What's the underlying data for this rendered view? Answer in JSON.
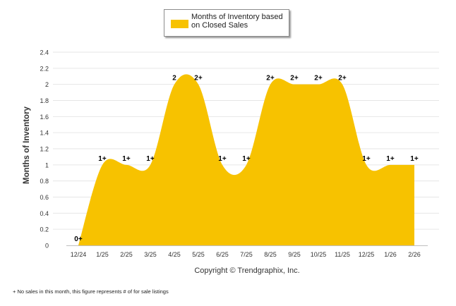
{
  "legend": {
    "label": "Months of Inventory based on Closed Sales"
  },
  "footnote": "+ No sales in this month, this figure represents # of for sale listings",
  "copyright": "Copyright © Trendgraphix, Inc.",
  "colors": {
    "fill": "#f7c200",
    "grid": "#e6e6e6",
    "axis": "#bfbfbf",
    "text": "#333333"
  },
  "chart_data": {
    "type": "area",
    "ylabel": "Months of Inventory",
    "xlabel": "",
    "ylim": [
      0,
      2.4
    ],
    "yticks": [
      "0",
      "0.2",
      "0.4",
      "0.6",
      "0.8",
      "1",
      "1.2",
      "1.4",
      "1.6",
      "1.8",
      "2",
      "2.2",
      "2.4"
    ],
    "grid": true,
    "legend_position": "top-center",
    "categories": [
      "12/24",
      "1/25",
      "2/25",
      "3/25",
      "4/25",
      "5/25",
      "6/25",
      "7/25",
      "8/25",
      "9/25",
      "10/25",
      "11/25",
      "12/25",
      "1/26",
      "2/26"
    ],
    "series": [
      {
        "name": "Months of Inventory based on Closed Sales",
        "values": [
          0,
          1,
          1,
          1,
          2,
          2,
          1,
          1,
          2,
          2,
          2,
          2,
          1,
          1,
          1
        ],
        "labels": [
          "0+",
          "1+",
          "1+",
          "1+",
          "2",
          "2+",
          "1+",
          "1+",
          "2+",
          "2+",
          "2+",
          "2+",
          "1+",
          "1+",
          "1+"
        ]
      }
    ]
  }
}
